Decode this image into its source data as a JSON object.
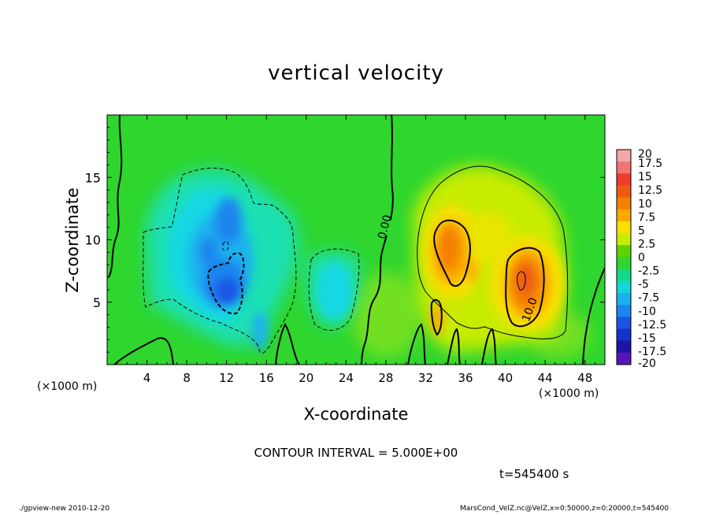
{
  "chart_data": {
    "type": "heatmap",
    "title": "vertical velocity",
    "xlabel": "X-coordinate",
    "ylabel": "Z-coordinate",
    "x_unit": "(×1000 m)",
    "xlim": [
      0,
      50
    ],
    "ylim": [
      0,
      20
    ],
    "x_ticks": [
      4,
      8,
      12,
      16,
      20,
      24,
      28,
      32,
      36,
      40,
      44,
      48
    ],
    "y_ticks": [
      5,
      10,
      15
    ],
    "contour_interval": "CONTOUR INTERVAL = 5.000E+00",
    "contour_labels": [
      {
        "text": "0.00",
        "x": 28,
        "y": 11
      },
      {
        "text": "10.0",
        "x": 42,
        "y": 4.6
      }
    ],
    "colorbar": {
      "labels": [
        "20",
        "17.5",
        "15",
        "12.5",
        "10",
        "7.5",
        "5",
        "2.5",
        "0",
        "-2.5",
        "-5",
        "-7.5",
        "-10",
        "-12.5",
        "-15",
        "-17.5",
        "-20"
      ],
      "colors": [
        "#f4a7a7",
        "#f27373",
        "#ee3b2b",
        "#ee5a12",
        "#f57f00",
        "#fba800",
        "#f7e000",
        "#c8ec00",
        "#5ed300",
        "#2ed62e",
        "#14d98a",
        "#12d7d7",
        "#1ab2ee",
        "#1b85ee",
        "#1c55e6",
        "#1432c8",
        "#1e14a6",
        "#5a14b9"
      ]
    },
    "features": [
      {
        "kind": "downdraft",
        "x": 12,
        "y": 7,
        "value": -12
      },
      {
        "kind": "downdraft",
        "x": 22,
        "y": 5,
        "value": -6
      },
      {
        "kind": "updraft",
        "x": 34,
        "y": 10,
        "value": 11
      },
      {
        "kind": "updraft",
        "x": 42,
        "y": 7,
        "value": 13
      }
    ],
    "time": "t=545400 s"
  },
  "footer": {
    "left": "./gpview-new   2010-12-20",
    "right": "MarsCond_VelZ.nc@VelZ,x=0:50000,z=0:20000,t=545400"
  }
}
